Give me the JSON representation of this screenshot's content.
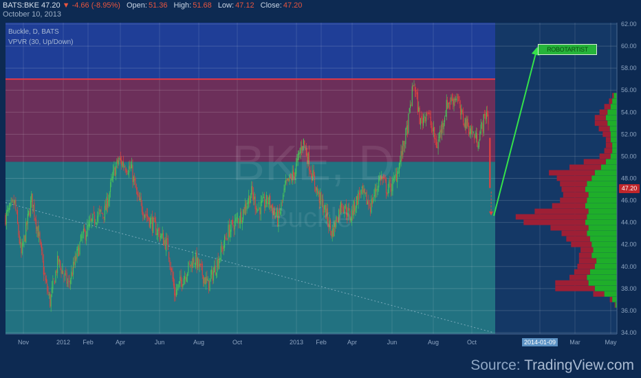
{
  "header": {
    "symbol": "BATS:BKE",
    "last": "47.20",
    "change": "▼ -4.66 (-8.95%)",
    "open_label": "Open:",
    "open": "51.36",
    "high_label": "High:",
    "high": "51.68",
    "low_label": "Low:",
    "low": "47.12",
    "close_label": "Close:",
    "close": "47.20",
    "date": "October 10, 2013"
  },
  "legend": {
    "line1": "Buckle, D, BATS",
    "line2": "VPVR (30, Up/Down)"
  },
  "watermark": {
    "symbol": "BKE, D",
    "name": "Buckle"
  },
  "price_tag": "47.20",
  "date_tag": "2014-01-09",
  "annotation": "ROBOTARTIST",
  "source": {
    "prefix": "Source: ",
    "name": "TradingView.com"
  },
  "colors": {
    "background": "#0d2a52",
    "upper_zone": "#6c2f5a",
    "lower_zone": "#227281",
    "top_zone": "#1f3e97",
    "resistance_line": "#e23a46",
    "candle_up": "#49c659",
    "candle_down": "#e1413f",
    "volume_up": "#1fae2a",
    "volume_down": "#9e1f35",
    "arrow": "#35e24a"
  },
  "chart_data": {
    "type": "candlestick",
    "x_ticks": [
      "Nov",
      "2012",
      "Feb",
      "Apr",
      "Jun",
      "Aug",
      "Oct",
      "2013",
      "Feb",
      "Apr",
      "Jun",
      "Aug",
      "Oct",
      "2014-01-09",
      "Mar",
      "May"
    ],
    "y_ticks": [
      "62.00",
      "60.00",
      "58.00",
      "56.00",
      "54.00",
      "52.00",
      "50.00",
      "48.00",
      "46.00",
      "44.00",
      "42.00",
      "40.00",
      "38.00",
      "36.00",
      "34.00"
    ],
    "ylim": [
      34,
      62
    ],
    "last_price": 47.2,
    "resistance": 57.0,
    "zone_split": 49.5,
    "trendline": [
      {
        "date": "2011-10-01",
        "price": 45.8
      },
      {
        "date": "2013-10-15",
        "price": 34.0
      }
    ],
    "projection": [
      {
        "date": "2013-10-15",
        "price": 44.6
      },
      {
        "date": "2013-12-20",
        "price": 59.8
      }
    ],
    "price_path": [
      [
        "2011-10-01",
        44.5
      ],
      [
        "2011-10-15",
        45.8
      ],
      [
        "2011-10-25",
        41.0
      ],
      [
        "2011-11-10",
        46.2
      ],
      [
        "2011-11-20",
        43.0
      ],
      [
        "2011-12-01",
        38.5
      ],
      [
        "2011-12-08",
        36.8
      ],
      [
        "2011-12-20",
        40.5
      ],
      [
        "2012-01-05",
        38.3
      ],
      [
        "2012-01-25",
        42.5
      ],
      [
        "2012-02-15",
        44.5
      ],
      [
        "2012-03-01",
        45.0
      ],
      [
        "2012-03-15",
        48.7
      ],
      [
        "2012-03-22",
        49.6
      ],
      [
        "2012-04-10",
        48.8
      ],
      [
        "2012-04-20",
        46.0
      ],
      [
        "2012-05-05",
        44.5
      ],
      [
        "2012-05-20",
        43.2
      ],
      [
        "2012-06-05",
        41.8
      ],
      [
        "2012-06-15",
        37.5
      ],
      [
        "2012-06-28",
        39.0
      ],
      [
        "2012-07-15",
        40.8
      ],
      [
        "2012-08-05",
        38.3
      ],
      [
        "2012-08-20",
        40.5
      ],
      [
        "2012-09-05",
        43.2
      ],
      [
        "2012-09-25",
        44.7
      ],
      [
        "2012-10-10",
        46.7
      ],
      [
        "2012-10-20",
        45.2
      ],
      [
        "2012-11-05",
        46.0
      ],
      [
        "2012-11-20",
        44.2
      ],
      [
        "2012-12-01",
        47.2
      ],
      [
        "2012-12-15",
        48.5
      ],
      [
        "2012-12-28",
        51.5
      ],
      [
        "2013-01-10",
        48.5
      ],
      [
        "2013-01-20",
        46.5
      ],
      [
        "2013-02-01",
        44.8
      ],
      [
        "2013-02-10",
        43.0
      ],
      [
        "2013-02-25",
        45.8
      ],
      [
        "2013-03-10",
        44.5
      ],
      [
        "2013-03-25",
        46.8
      ],
      [
        "2013-04-10",
        45.5
      ],
      [
        "2013-04-25",
        48.2
      ],
      [
        "2013-05-05",
        47.0
      ],
      [
        "2013-05-15",
        47.5
      ],
      [
        "2013-05-25",
        49.6
      ],
      [
        "2013-06-05",
        52.5
      ],
      [
        "2013-06-15",
        56.8
      ],
      [
        "2013-06-25",
        53.0
      ],
      [
        "2013-07-05",
        54.2
      ],
      [
        "2013-07-20",
        50.9
      ],
      [
        "2013-08-05",
        54.8
      ],
      [
        "2013-08-20",
        55.5
      ],
      [
        "2013-08-25",
        53.8
      ],
      [
        "2013-09-05",
        52.8
      ],
      [
        "2013-09-20",
        51.4
      ],
      [
        "2013-10-05",
        54.2
      ],
      [
        "2013-10-08",
        52.0
      ],
      [
        "2013-10-10",
        47.2
      ]
    ],
    "volume_profile": [
      {
        "price": 36.5,
        "up": 2,
        "down": 1
      },
      {
        "price": 37.0,
        "up": 6,
        "down": 3
      },
      {
        "price": 37.5,
        "up": 16,
        "down": 14
      },
      {
        "price": 38.0,
        "up": 28,
        "down": 50
      },
      {
        "price": 38.5,
        "up": 36,
        "down": 42
      },
      {
        "price": 39.0,
        "up": 38,
        "down": 22
      },
      {
        "price": 39.5,
        "up": 34,
        "down": 20
      },
      {
        "price": 40.0,
        "up": 28,
        "down": 22
      },
      {
        "price": 40.5,
        "up": 26,
        "down": 22
      },
      {
        "price": 41.0,
        "up": 32,
        "down": 16
      },
      {
        "price": 41.5,
        "up": 30,
        "down": 16
      },
      {
        "price": 42.0,
        "up": 32,
        "down": 26
      },
      {
        "price": 42.5,
        "up": 34,
        "down": 30
      },
      {
        "price": 43.0,
        "up": 38,
        "down": 32
      },
      {
        "price": 43.5,
        "up": 36,
        "down": 48
      },
      {
        "price": 44.0,
        "up": 40,
        "down": 78
      },
      {
        "price": 44.5,
        "up": 38,
        "down": 90
      },
      {
        "price": 45.0,
        "up": 36,
        "down": 68
      },
      {
        "price": 45.5,
        "up": 40,
        "down": 42
      },
      {
        "price": 46.0,
        "up": 38,
        "down": 34
      },
      {
        "price": 46.5,
        "up": 36,
        "down": 32
      },
      {
        "price": 47.0,
        "up": 40,
        "down": 30
      },
      {
        "price": 47.5,
        "up": 38,
        "down": 34
      },
      {
        "price": 48.0,
        "up": 32,
        "down": 44
      },
      {
        "price": 48.5,
        "up": 28,
        "down": 58
      },
      {
        "price": 49.0,
        "up": 20,
        "down": 40
      },
      {
        "price": 49.5,
        "up": 14,
        "down": 28
      },
      {
        "price": 50.0,
        "up": 8,
        "down": 14
      },
      {
        "price": 50.5,
        "up": 6,
        "down": 10
      },
      {
        "price": 51.0,
        "up": 6,
        "down": 8
      },
      {
        "price": 51.5,
        "up": 8,
        "down": 6
      },
      {
        "price": 52.0,
        "up": 8,
        "down": 10
      },
      {
        "price": 52.5,
        "up": 9,
        "down": 14
      },
      {
        "price": 53.0,
        "up": 12,
        "down": 16
      },
      {
        "price": 53.5,
        "up": 14,
        "down": 14
      },
      {
        "price": 54.0,
        "up": 12,
        "down": 10
      },
      {
        "price": 54.5,
        "up": 8,
        "down": 8
      },
      {
        "price": 55.0,
        "up": 6,
        "down": 4
      },
      {
        "price": 55.5,
        "up": 4,
        "down": 2
      }
    ]
  }
}
